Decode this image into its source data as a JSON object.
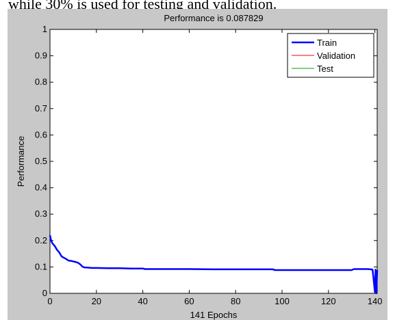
{
  "page": {
    "caption": "while 30% is used for testing and validation."
  },
  "chart_data": {
    "type": "line",
    "title": "Performance is 0.087829",
    "xlabel": "141 Epochs",
    "ylabel": "Performance",
    "xlim": [
      0,
      141
    ],
    "ylim": [
      0,
      1
    ],
    "xticks": [
      0,
      20,
      40,
      60,
      80,
      100,
      120,
      140
    ],
    "yticks": [
      0,
      0.1,
      0.2,
      0.3,
      0.4,
      0.5,
      0.6,
      0.7,
      0.8,
      0.9,
      1
    ],
    "grid": false,
    "legend_position": "top-right",
    "series": [
      {
        "name": "Train",
        "color": "#0000ff",
        "x": [
          0,
          0.5,
          1,
          2,
          3,
          4,
          5,
          6,
          7,
          8,
          9,
          10,
          11,
          12,
          13,
          14,
          15,
          16,
          18,
          20,
          25,
          30,
          35,
          40,
          41,
          50,
          60,
          70,
          80,
          90,
          96,
          97,
          100,
          110,
          120,
          130,
          131,
          134,
          137,
          139,
          139.5,
          140,
          140.3,
          140.6,
          141
        ],
        "y": [
          0.22,
          0.2,
          0.19,
          0.18,
          0.165,
          0.155,
          0.14,
          0.135,
          0.13,
          0.124,
          0.123,
          0.121,
          0.119,
          0.116,
          0.11,
          0.101,
          0.098,
          0.098,
          0.096,
          0.096,
          0.095,
          0.095,
          0.094,
          0.094,
          0.092,
          0.092,
          0.092,
          0.091,
          0.091,
          0.091,
          0.091,
          0.088,
          0.088,
          0.088,
          0.088,
          0.088,
          0.092,
          0.092,
          0.092,
          0.09,
          0.05,
          0.005,
          0.09,
          0.0,
          0.088
        ]
      },
      {
        "name": "Validation",
        "color": "#ff0000",
        "x": [],
        "y": []
      },
      {
        "name": "Test",
        "color": "#00a000",
        "x": [],
        "y": []
      }
    ]
  }
}
